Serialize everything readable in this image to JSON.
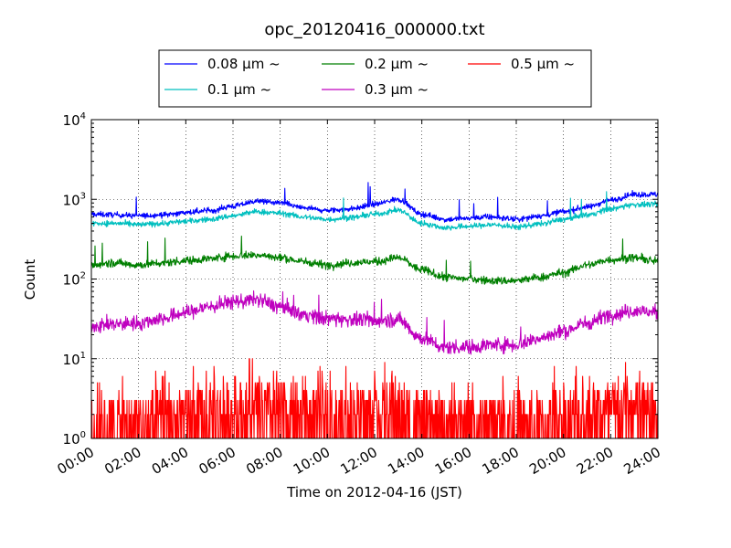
{
  "chart_data": {
    "type": "line",
    "title": "opc_20120416_000000.txt",
    "xlabel": "Time on 2012-04-16 (JST)",
    "ylabel": "Count",
    "x_ticks": [
      "00:00",
      "02:00",
      "04:00",
      "06:00",
      "08:00",
      "10:00",
      "12:00",
      "14:00",
      "16:00",
      "18:00",
      "20:00",
      "22:00",
      "24:00"
    ],
    "x_range_hours": [
      0,
      24
    ],
    "y_scale": "log",
    "ylim": [
      1,
      10000
    ],
    "y_ticks": [
      {
        "base": "10",
        "exp": "0"
      },
      {
        "base": "10",
        "exp": "1"
      },
      {
        "base": "10",
        "exp": "2"
      },
      {
        "base": "10",
        "exp": "3"
      },
      {
        "base": "10",
        "exp": "4"
      }
    ],
    "grid": true,
    "legend_position": "top-center, above plot",
    "series": [
      {
        "name": "0.08 μm ~",
        "color": "#0000ff",
        "x": [
          0,
          1,
          2,
          3,
          4,
          5,
          6,
          7,
          8,
          9,
          10,
          11,
          12,
          13,
          14,
          15,
          16,
          17,
          18,
          19,
          20,
          21,
          22,
          23,
          24
        ],
        "y": [
          650,
          640,
          620,
          640,
          680,
          720,
          820,
          950,
          900,
          780,
          720,
          760,
          870,
          1000,
          650,
          560,
          580,
          600,
          560,
          620,
          700,
          800,
          980,
          1150,
          1150
        ]
      },
      {
        "name": "0.1 μm ~",
        "color": "#00bfbf",
        "x": [
          0,
          1,
          2,
          3,
          4,
          5,
          6,
          7,
          8,
          9,
          10,
          11,
          12,
          13,
          14,
          15,
          16,
          17,
          18,
          19,
          20,
          21,
          22,
          23,
          24
        ],
        "y": [
          500,
          500,
          480,
          500,
          530,
          560,
          620,
          700,
          670,
          600,
          560,
          590,
          650,
          730,
          500,
          440,
          460,
          480,
          450,
          490,
          560,
          640,
          760,
          860,
          860
        ]
      },
      {
        "name": "0.2 μm ~",
        "color": "#007f00",
        "x": [
          0,
          1,
          2,
          3,
          4,
          5,
          6,
          7,
          8,
          9,
          10,
          11,
          12,
          13,
          14,
          15,
          16,
          17,
          18,
          19,
          20,
          21,
          22,
          23,
          24
        ],
        "y": [
          150,
          160,
          150,
          160,
          170,
          180,
          195,
          200,
          185,
          165,
          150,
          160,
          165,
          185,
          130,
          105,
          100,
          95,
          95,
          105,
          120,
          150,
          175,
          185,
          165
        ]
      },
      {
        "name": "0.3 μm ~",
        "color": "#bf00bf",
        "x": [
          0,
          1,
          2,
          3,
          4,
          5,
          6,
          7,
          8,
          9,
          10,
          11,
          12,
          13,
          14,
          15,
          16,
          17,
          18,
          19,
          20,
          21,
          22,
          23,
          24
        ],
        "y": [
          26,
          27,
          28,
          32,
          38,
          45,
          52,
          55,
          45,
          36,
          32,
          31,
          30,
          31,
          18,
          14,
          14,
          15,
          15,
          18,
          22,
          28,
          36,
          40,
          38
        ]
      },
      {
        "name": "0.5 μm ~",
        "color": "#ff0000",
        "x": [
          0,
          1,
          2,
          3,
          4,
          5,
          6,
          7,
          8,
          9,
          10,
          11,
          12,
          13,
          14,
          15,
          16,
          17,
          18,
          19,
          20,
          21,
          22,
          23,
          24
        ],
        "y": [
          2.0,
          2.0,
          2.0,
          2.2,
          2.4,
          2.6,
          2.8,
          3.0,
          2.8,
          2.5,
          2.3,
          2.4,
          2.6,
          2.8,
          2.2,
          1.9,
          1.9,
          2.0,
          2.0,
          2.1,
          2.3,
          2.6,
          2.9,
          3.1,
          3.0
        ]
      }
    ]
  }
}
